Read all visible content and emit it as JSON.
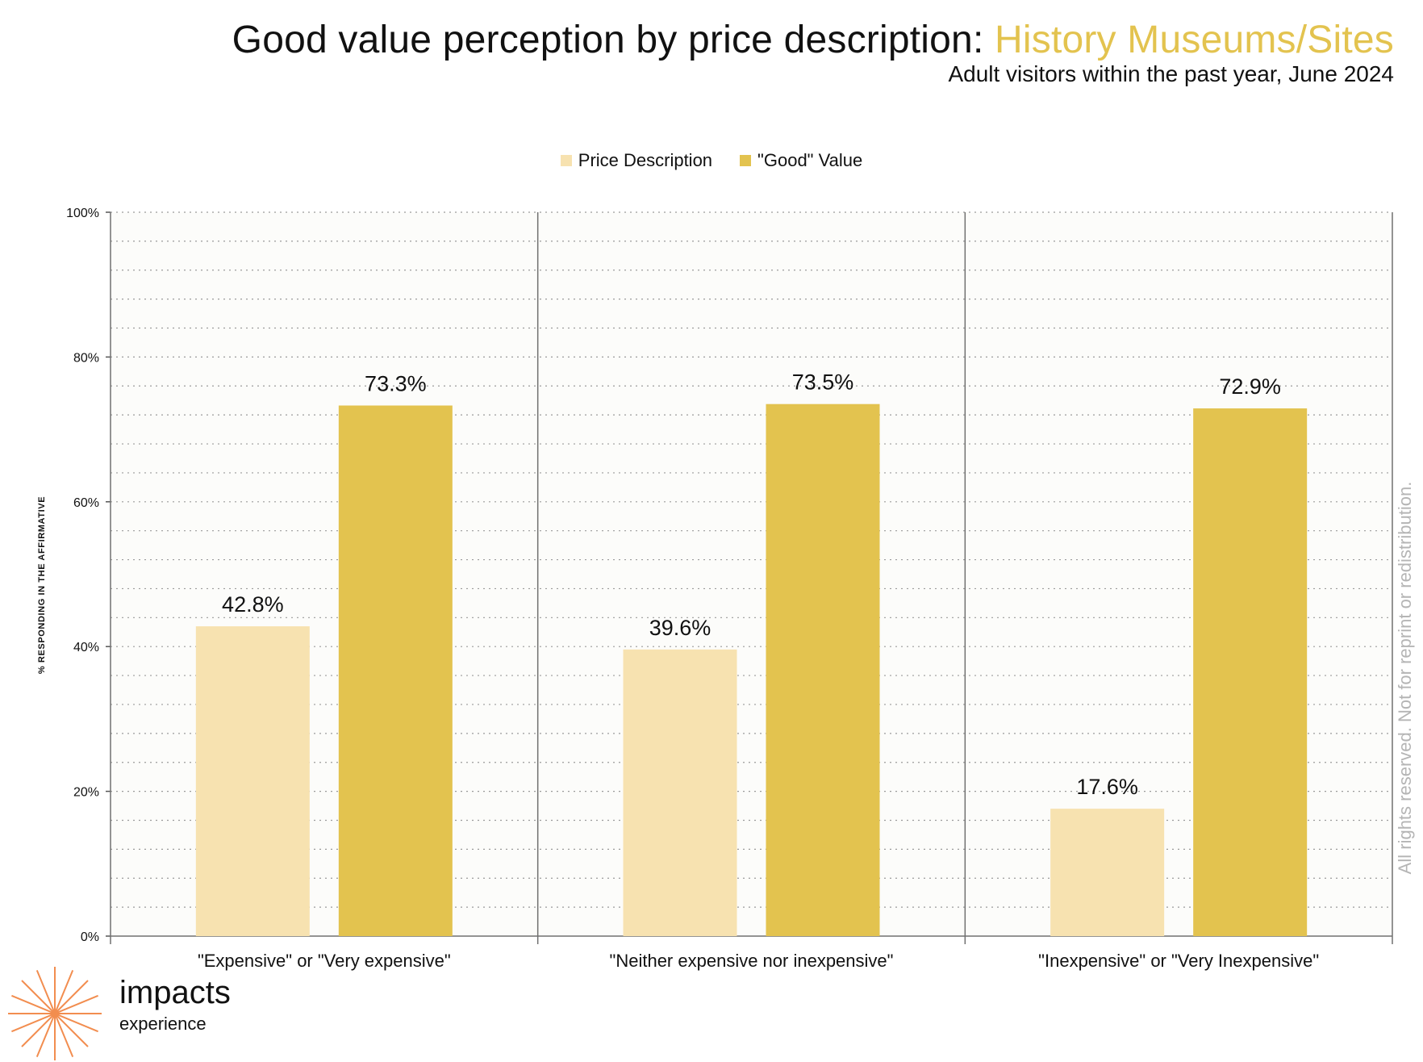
{
  "title_prefix": "Good value perception by price description: ",
  "title_highlight": "History Museums/Sites",
  "subtitle": "Adult visitors within the past year, June 2024",
  "rights_text": "All rights reserved. Not for reprint or redistribution.",
  "logo": {
    "name": "impacts",
    "sub": "experience"
  },
  "watermark": {
    "name": "impacts",
    "sub": "experience"
  },
  "colors": {
    "price_description": "#f7e2b0",
    "good_value": "#e3c34f",
    "highlight": "#e3c34f",
    "logo": "#f28d4f"
  },
  "chart_data": {
    "type": "bar",
    "ylabel": "% RESPONDING IN THE AFFIRMATIVE",
    "xlabel": "",
    "ylim": [
      0,
      100
    ],
    "yticks": [
      "0%",
      "20%",
      "40%",
      "60%",
      "80%",
      "100%"
    ],
    "categories": [
      "\"Expensive\" or \"Very expensive\"",
      "\"Neither expensive nor inexpensive\"",
      "\"Inexpensive\" or \"Very Inexpensive\""
    ],
    "series": [
      {
        "name": "Price Description",
        "values": [
          42.8,
          39.6,
          17.6
        ],
        "labels": [
          "42.8%",
          "39.6%",
          "17.6%"
        ]
      },
      {
        "name": "\"Good\" Value",
        "values": [
          73.3,
          73.5,
          72.9
        ],
        "labels": [
          "73.3%",
          "73.5%",
          "72.9%"
        ]
      }
    ],
    "legend_position": "top",
    "grid": true
  }
}
